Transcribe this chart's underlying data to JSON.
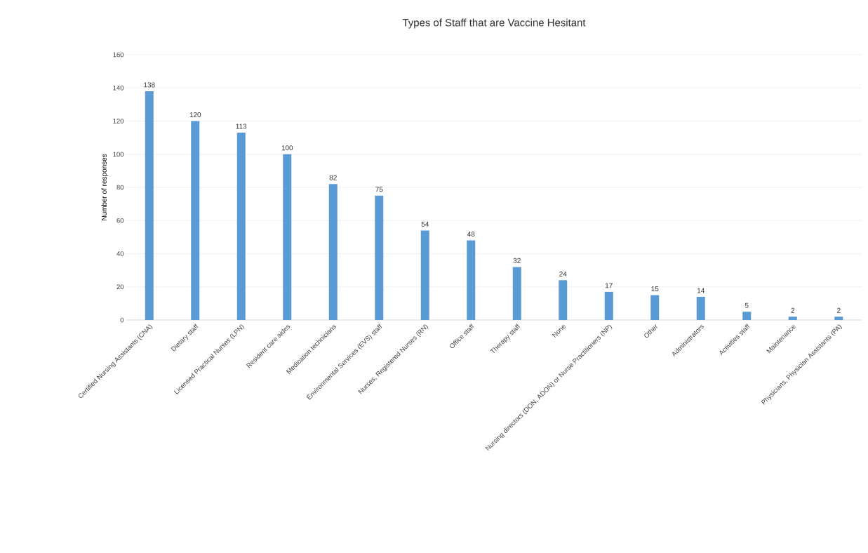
{
  "chart_data": {
    "type": "bar",
    "title": "Types of Staff that are Vaccine Hesitant",
    "ylabel": "Number of responses",
    "categories": [
      "Certified Nursing Assistants (CNA)",
      "Dietary staff",
      "Licensed Practical Nurses (LPN)",
      "Resident care aides",
      "Medication technicians",
      "Environmental Services (EVS) staff",
      "Nurses, Registered Nurses (RN)",
      "Office staff",
      "Therapy staff",
      "None",
      "Nursing directors (DON, ADON) or Nurse Practitioners (NP)",
      "Other",
      "Administrators",
      "Activities staff",
      "Maintenance",
      "Physicians, Physician Assistants (PA)"
    ],
    "values": [
      138,
      120,
      113,
      100,
      82,
      75,
      54,
      48,
      32,
      24,
      17,
      15,
      14,
      5,
      2,
      2
    ],
    "color": "#5b9bd5",
    "ylim": [
      0,
      160
    ],
    "yticks": [
      0,
      20,
      40,
      60,
      80,
      100,
      120,
      140,
      160
    ],
    "grid": "y",
    "data_labels": true
  }
}
